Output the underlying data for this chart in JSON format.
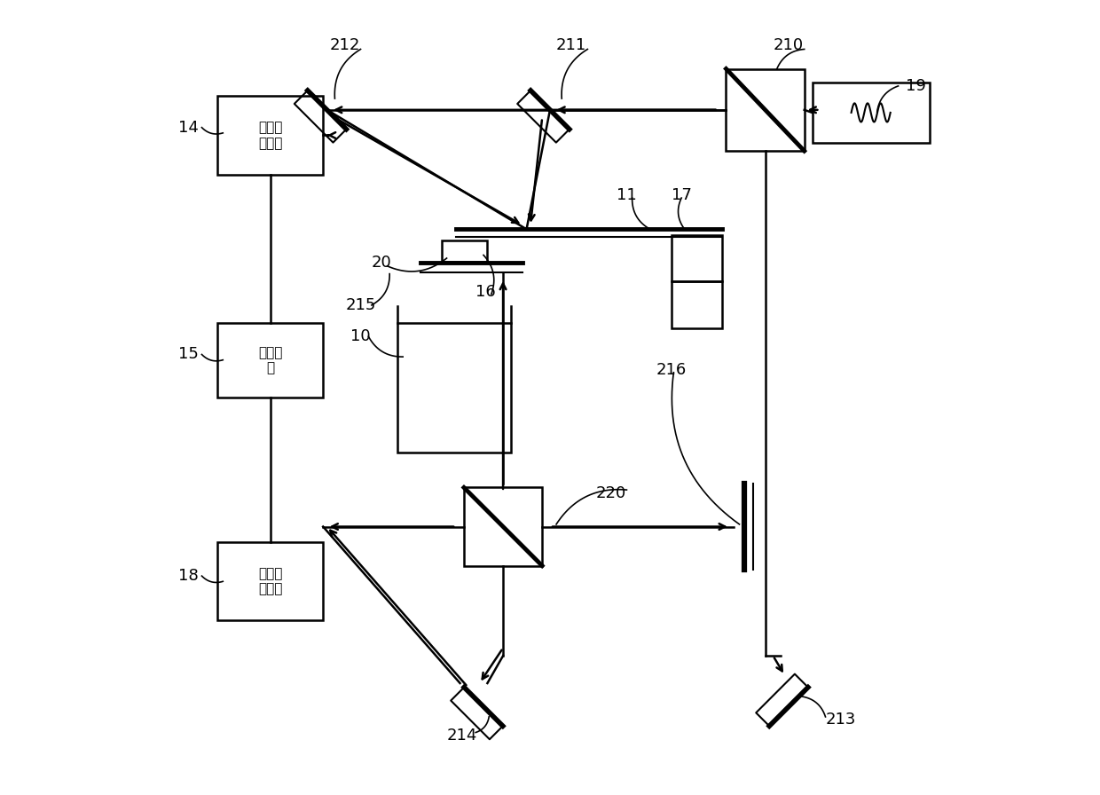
{
  "bg_color": "#ffffff",
  "line_color": "#000000",
  "fig_width": 12.4,
  "fig_height": 8.96,
  "text_14": "第一测\n量模块",
  "text_15": "处理模\n块",
  "text_18": "第二测\n量模块"
}
